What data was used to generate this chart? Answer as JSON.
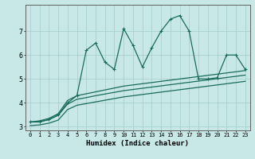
{
  "xlabel": "Humidex (Indice chaleur)",
  "background_color": "#c8e8e8",
  "grid_color": "#a8d0d0",
  "line_color": "#1a6b5a",
  "x_values": [
    0,
    1,
    2,
    3,
    4,
    5,
    6,
    7,
    8,
    9,
    10,
    11,
    12,
    13,
    14,
    15,
    16,
    17,
    18,
    19,
    20,
    21,
    22,
    23
  ],
  "y_main": [
    3.2,
    3.2,
    3.3,
    3.5,
    4.0,
    4.3,
    6.2,
    6.5,
    5.7,
    5.4,
    7.1,
    6.4,
    5.5,
    6.3,
    7.0,
    7.5,
    7.65,
    7.0,
    5.0,
    5.0,
    5.05,
    6.0,
    6.0,
    5.4
  ],
  "y_line1": [
    3.2,
    3.25,
    3.35,
    3.55,
    4.1,
    4.3,
    4.38,
    4.46,
    4.54,
    4.62,
    4.7,
    4.75,
    4.8,
    4.85,
    4.9,
    4.95,
    5.0,
    5.05,
    5.1,
    5.15,
    5.2,
    5.25,
    5.3,
    5.35
  ],
  "y_line2": [
    3.2,
    3.22,
    3.3,
    3.48,
    3.95,
    4.15,
    4.22,
    4.3,
    4.37,
    4.44,
    4.51,
    4.56,
    4.61,
    4.66,
    4.71,
    4.76,
    4.81,
    4.86,
    4.91,
    4.96,
    5.01,
    5.06,
    5.11,
    5.16
  ],
  "y_line3": [
    3.05,
    3.08,
    3.15,
    3.28,
    3.72,
    3.9,
    3.97,
    4.04,
    4.11,
    4.18,
    4.25,
    4.3,
    4.35,
    4.4,
    4.45,
    4.5,
    4.55,
    4.6,
    4.65,
    4.7,
    4.75,
    4.8,
    4.85,
    4.9
  ],
  "ylim": [
    2.85,
    8.1
  ],
  "xlim": [
    -0.5,
    23.5
  ],
  "yticks": [
    3,
    4,
    5,
    6,
    7
  ],
  "xticks": [
    0,
    1,
    2,
    3,
    4,
    5,
    6,
    7,
    8,
    9,
    10,
    11,
    12,
    13,
    14,
    15,
    16,
    17,
    18,
    19,
    20,
    21,
    22,
    23
  ]
}
